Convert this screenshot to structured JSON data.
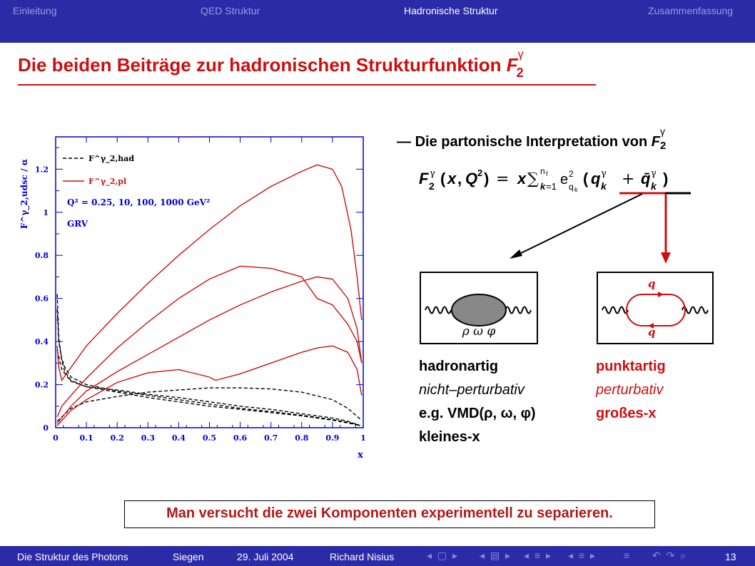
{
  "nav": {
    "items": [
      "Einleitung",
      "QED Struktur",
      "Hadronische Struktur",
      "Zusammenfassung"
    ],
    "active": 2
  },
  "slide": {
    "title": "Die beiden Beiträge zur hadronischen Strukturfunktion",
    "title_symbol": "F",
    "title_sub": "2",
    "title_sup": "γ"
  },
  "right": {
    "heading_dash": "—",
    "heading": "Die partonische Interpretation von",
    "heading_symbol": "F",
    "heading_sub": "2",
    "heading_sup": "γ",
    "formula": "F₂γ(x, Q²) = x Σk=1..nf e²qk (qkγ + q̄kγ)",
    "vmd_label": "ρ ω φ",
    "quark_top": "q",
    "quark_bottom": "q",
    "hadron": [
      "hadronartig",
      "nicht–perturbativ",
      "e.g. VMD(ρ, ω, φ)",
      "kleines-x"
    ],
    "point": [
      "punktartig",
      "perturbativ",
      "großes-x"
    ]
  },
  "bottom_note": "Man versucht die zwei Komponenten experimentell zu separieren.",
  "footer": {
    "title": "Die Struktur des Photons",
    "place": "Siegen",
    "date": "29. Juli 2004",
    "author": "Richard Nisius",
    "page": "13"
  },
  "colors": {
    "bar": "#2b2ba7",
    "accent_red": "#cc1010",
    "axis_blue": "#0000cc"
  },
  "chart_data": {
    "type": "line",
    "ylabel": "F^γ_2,udsc / α",
    "xlabel": "x",
    "xlim": [
      0,
      1
    ],
    "ylim": [
      0,
      1.35
    ],
    "xticks": [
      0,
      0.1,
      0.2,
      0.3,
      0.4,
      0.5,
      0.6,
      0.7,
      0.8,
      0.9,
      1
    ],
    "yticks": [
      0,
      0.2,
      0.4,
      0.6,
      0.8,
      1,
      1.2
    ],
    "legend": [
      {
        "label": "F^γ_2,had",
        "style": "dashed",
        "color": "#000000"
      },
      {
        "label": "F^γ_2,pl",
        "style": "solid",
        "color": "#cc1010"
      }
    ],
    "annotation": "Q² = 0.25, 10, 100, 1000 GeV²",
    "annotation2": "GRV",
    "series": [
      {
        "style": "dashed",
        "color": "#000000",
        "points": [
          [
            0.005,
            0.62
          ],
          [
            0.01,
            0.42
          ],
          [
            0.02,
            0.31
          ],
          [
            0.03,
            0.26
          ],
          [
            0.05,
            0.22
          ],
          [
            0.1,
            0.19
          ],
          [
            0.2,
            0.165
          ],
          [
            0.3,
            0.14
          ],
          [
            0.4,
            0.12
          ],
          [
            0.5,
            0.1
          ],
          [
            0.6,
            0.085
          ],
          [
            0.7,
            0.07
          ],
          [
            0.8,
            0.055
          ],
          [
            0.9,
            0.035
          ],
          [
            0.95,
            0.022
          ],
          [
            0.99,
            0.01
          ]
        ]
      },
      {
        "style": "dashed",
        "color": "#000000",
        "points": [
          [
            0.005,
            0.55
          ],
          [
            0.01,
            0.4
          ],
          [
            0.02,
            0.32
          ],
          [
            0.03,
            0.28
          ],
          [
            0.05,
            0.235
          ],
          [
            0.1,
            0.2
          ],
          [
            0.2,
            0.17
          ],
          [
            0.3,
            0.15
          ],
          [
            0.4,
            0.13
          ],
          [
            0.5,
            0.11
          ],
          [
            0.6,
            0.09
          ],
          [
            0.7,
            0.075
          ],
          [
            0.8,
            0.058
          ],
          [
            0.9,
            0.038
          ],
          [
            0.95,
            0.025
          ],
          [
            0.99,
            0.012
          ]
        ]
      },
      {
        "style": "dashed",
        "color": "#000000",
        "points": [
          [
            0.005,
            0.36
          ],
          [
            0.02,
            0.27
          ],
          [
            0.05,
            0.215
          ],
          [
            0.1,
            0.19
          ],
          [
            0.2,
            0.175
          ],
          [
            0.3,
            0.155
          ],
          [
            0.4,
            0.14
          ],
          [
            0.5,
            0.12
          ],
          [
            0.6,
            0.1
          ],
          [
            0.7,
            0.085
          ],
          [
            0.8,
            0.065
          ],
          [
            0.9,
            0.045
          ],
          [
            0.95,
            0.03
          ],
          [
            0.99,
            0.01
          ]
        ]
      },
      {
        "style": "dashed",
        "color": "#000000",
        "points": [
          [
            0.005,
            0.03
          ],
          [
            0.05,
            0.09
          ],
          [
            0.1,
            0.12
          ],
          [
            0.2,
            0.145
          ],
          [
            0.3,
            0.165
          ],
          [
            0.4,
            0.175
          ],
          [
            0.5,
            0.185
          ],
          [
            0.6,
            0.185
          ],
          [
            0.7,
            0.18
          ],
          [
            0.8,
            0.165
          ],
          [
            0.9,
            0.13
          ],
          [
            0.95,
            0.09
          ],
          [
            0.99,
            0.04
          ]
        ]
      },
      {
        "style": "solid",
        "color": "#cc1010",
        "points": [
          [
            0.005,
            0.01
          ],
          [
            0.05,
            0.08
          ],
          [
            0.1,
            0.13
          ],
          [
            0.2,
            0.21
          ],
          [
            0.3,
            0.255
          ],
          [
            0.4,
            0.27
          ],
          [
            0.5,
            0.235
          ],
          [
            0.52,
            0.22
          ],
          [
            0.6,
            0.25
          ],
          [
            0.7,
            0.3
          ],
          [
            0.8,
            0.35
          ],
          [
            0.85,
            0.37
          ],
          [
            0.9,
            0.38
          ],
          [
            0.95,
            0.35
          ],
          [
            0.98,
            0.27
          ],
          [
            0.995,
            0.15
          ]
        ]
      },
      {
        "style": "solid",
        "color": "#cc1010",
        "points": [
          [
            0.005,
            0.02
          ],
          [
            0.05,
            0.1
          ],
          [
            0.1,
            0.17
          ],
          [
            0.2,
            0.26
          ],
          [
            0.3,
            0.34
          ],
          [
            0.4,
            0.42
          ],
          [
            0.5,
            0.5
          ],
          [
            0.6,
            0.57
          ],
          [
            0.7,
            0.63
          ],
          [
            0.8,
            0.68
          ],
          [
            0.85,
            0.7
          ],
          [
            0.9,
            0.69
          ],
          [
            0.95,
            0.6
          ],
          [
            0.98,
            0.46
          ],
          [
            0.995,
            0.3
          ]
        ]
      },
      {
        "style": "solid",
        "color": "#cc1010",
        "points": [
          [
            0.005,
            0.05
          ],
          [
            0.02,
            0.1
          ],
          [
            0.05,
            0.15
          ],
          [
            0.1,
            0.23
          ],
          [
            0.2,
            0.37
          ],
          [
            0.3,
            0.49
          ],
          [
            0.4,
            0.6
          ],
          [
            0.5,
            0.69
          ],
          [
            0.6,
            0.75
          ],
          [
            0.7,
            0.74
          ],
          [
            0.8,
            0.7
          ],
          [
            0.85,
            0.6
          ],
          [
            0.9,
            0.57
          ],
          [
            0.95,
            0.48
          ],
          [
            0.98,
            0.4
          ],
          [
            0.995,
            0.3
          ]
        ]
      },
      {
        "style": "solid",
        "color": "#cc1010",
        "points": [
          [
            0.005,
            0.38
          ],
          [
            0.01,
            0.28
          ],
          [
            0.02,
            0.22
          ],
          [
            0.04,
            0.26
          ],
          [
            0.06,
            0.3
          ],
          [
            0.1,
            0.38
          ],
          [
            0.2,
            0.53
          ],
          [
            0.3,
            0.67
          ],
          [
            0.4,
            0.8
          ],
          [
            0.5,
            0.92
          ],
          [
            0.6,
            1.03
          ],
          [
            0.7,
            1.12
          ],
          [
            0.8,
            1.19
          ],
          [
            0.85,
            1.22
          ],
          [
            0.9,
            1.2
          ],
          [
            0.93,
            1.12
          ],
          [
            0.96,
            0.92
          ],
          [
            0.98,
            0.7
          ],
          [
            0.995,
            0.5
          ]
        ]
      }
    ]
  }
}
